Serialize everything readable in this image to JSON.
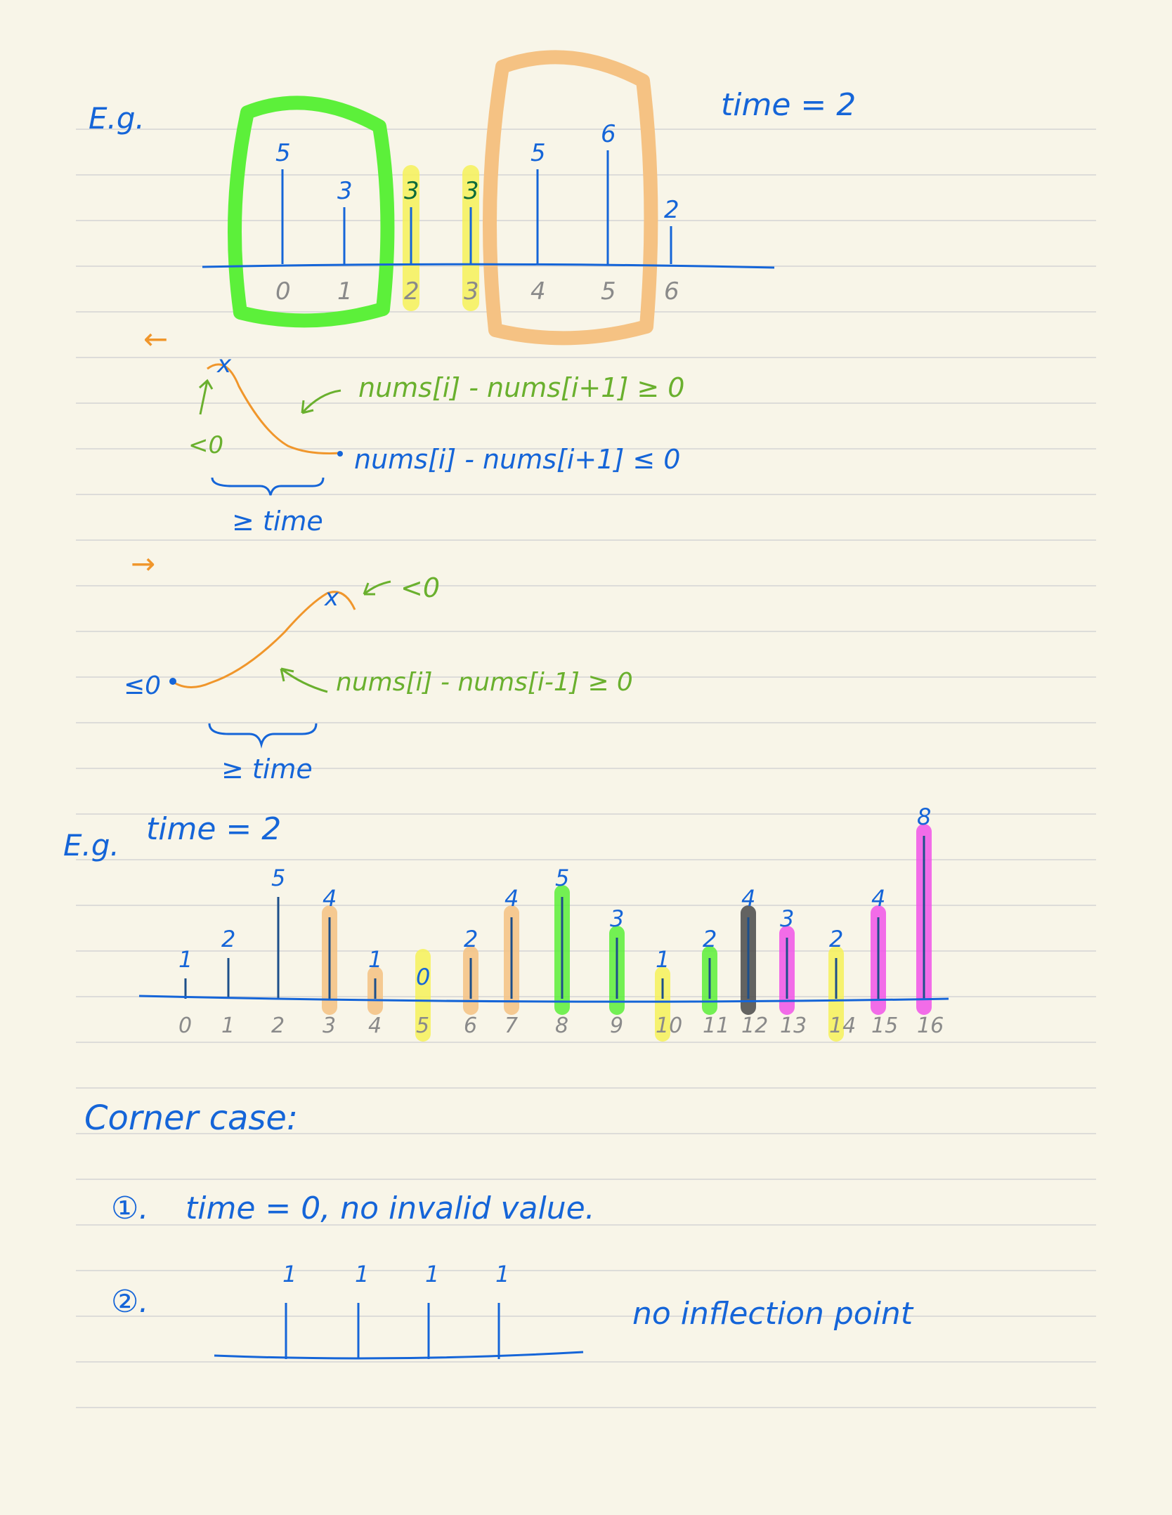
{
  "colors": {
    "paper": "#f8f5e8",
    "rule": "#d4d4d4",
    "ink_blue": "#1565d8",
    "ink_green": "#6ab02e",
    "ink_orange": "#f0962b",
    "ink_gray": "#8a8a8a",
    "hl_green": "#5cf03a",
    "hl_orange": "#f5c283",
    "hl_yellow": "#f6f25a",
    "hl_pink": "#f255e8",
    "hl_dark": "#4a4a4a"
  },
  "example1": {
    "label": "E.g.",
    "time_label": "time = 2",
    "bars": [
      {
        "index": "0",
        "value": "5",
        "height": 5
      },
      {
        "index": "1",
        "value": "3",
        "height": 3
      },
      {
        "index": "2",
        "value": "3",
        "height": 3,
        "highlight": "yellow"
      },
      {
        "index": "3",
        "value": "3",
        "height": 3,
        "highlight": "yellow"
      },
      {
        "index": "4",
        "value": "5",
        "height": 5
      },
      {
        "index": "5",
        "value": "6",
        "height": 6
      },
      {
        "index": "6",
        "value": "2",
        "height": 2
      }
    ],
    "groups": [
      {
        "color": "green",
        "from": 0,
        "to": 1
      },
      {
        "color": "orange",
        "from": 4,
        "to": 5
      }
    ]
  },
  "sketch1": {
    "direction_arrow": "←",
    "peak_mark": "x",
    "left_cond": "<0",
    "slope_cond": "nums[i] - nums[i+1] ≥ 0",
    "end_cond": "nums[i] - nums[i+1] ≤ 0",
    "span_label": "≥ time"
  },
  "sketch2": {
    "direction_arrow": "→",
    "peak_mark": "x",
    "peak_cond": "<0",
    "start_cond": "≤0",
    "slope_cond": "nums[i] - nums[i-1] ≥ 0",
    "span_label": "≥ time"
  },
  "example2": {
    "label": "E.g.",
    "time_label": "time = 2",
    "bars": [
      {
        "index": "0",
        "value": "1",
        "height": 1
      },
      {
        "index": "1",
        "value": "2",
        "height": 2
      },
      {
        "index": "2",
        "value": "5",
        "height": 5
      },
      {
        "index": "3",
        "value": "4",
        "height": 4,
        "highlight": "orange"
      },
      {
        "index": "4",
        "value": "1",
        "height": 1,
        "highlight": "orange"
      },
      {
        "index": "5",
        "value": "0",
        "height": 0,
        "highlight": "yellow"
      },
      {
        "index": "6",
        "value": "2",
        "height": 2,
        "highlight": "orange"
      },
      {
        "index": "7",
        "value": "4",
        "height": 4,
        "highlight": "orange"
      },
      {
        "index": "8",
        "value": "5",
        "height": 5,
        "highlight": "green"
      },
      {
        "index": "9",
        "value": "3",
        "height": 3,
        "highlight": "green"
      },
      {
        "index": "10",
        "value": "1",
        "height": 1,
        "highlight": "yellow"
      },
      {
        "index": "11",
        "value": "2",
        "height": 2,
        "highlight": "green"
      },
      {
        "index": "12",
        "value": "4",
        "height": 4,
        "highlight": "dark"
      },
      {
        "index": "13",
        "value": "3",
        "height": 3,
        "highlight": "pink"
      },
      {
        "index": "14",
        "value": "2",
        "height": 2,
        "highlight": "yellow"
      },
      {
        "index": "15",
        "value": "4",
        "height": 4,
        "highlight": "pink"
      },
      {
        "index": "16",
        "value": "8",
        "height": 8,
        "highlight": "pink"
      }
    ]
  },
  "corner": {
    "title": "Corner case:",
    "case1_marker": "①.",
    "case1_text": "time = 0, no invalid value.",
    "case2_marker": "②.",
    "case2_values": [
      "1",
      "1",
      "1",
      "1"
    ],
    "case2_text": "no inflection point"
  }
}
